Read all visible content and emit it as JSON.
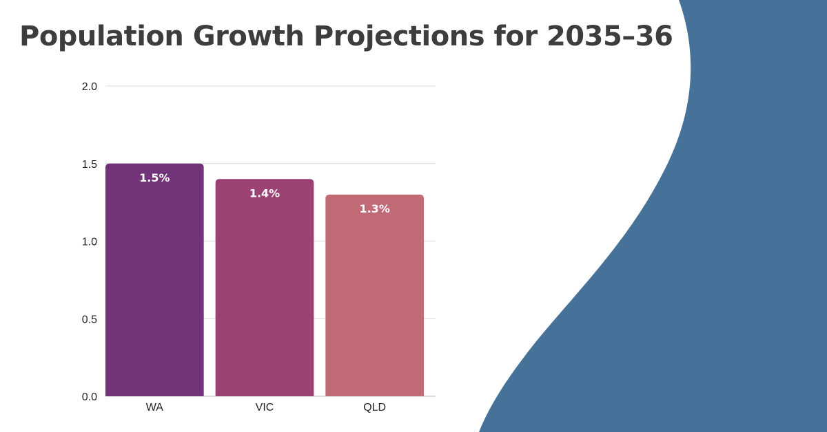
{
  "colors": {
    "background": "#ffffff",
    "accent_shape": "#467199",
    "title": "#3d3d3d",
    "gridline": "#d9d9d9"
  },
  "chart_data": {
    "type": "bar",
    "title": "Population Growth Projections for 2035–36",
    "xlabel": "",
    "ylabel": "",
    "categories": [
      "WA",
      "VIC",
      "QLD"
    ],
    "values": [
      1.5,
      1.4,
      1.3
    ],
    "data_labels": [
      "1.5%",
      "1.4%",
      "1.3%"
    ],
    "bar_colors": [
      "#723479",
      "#9b4272",
      "#c06a76"
    ],
    "ylim": [
      0,
      2
    ],
    "yticks": [
      "0.0",
      "0.5",
      "1.0",
      "1.5",
      "2.0"
    ],
    "grid": true,
    "legend": "none"
  }
}
